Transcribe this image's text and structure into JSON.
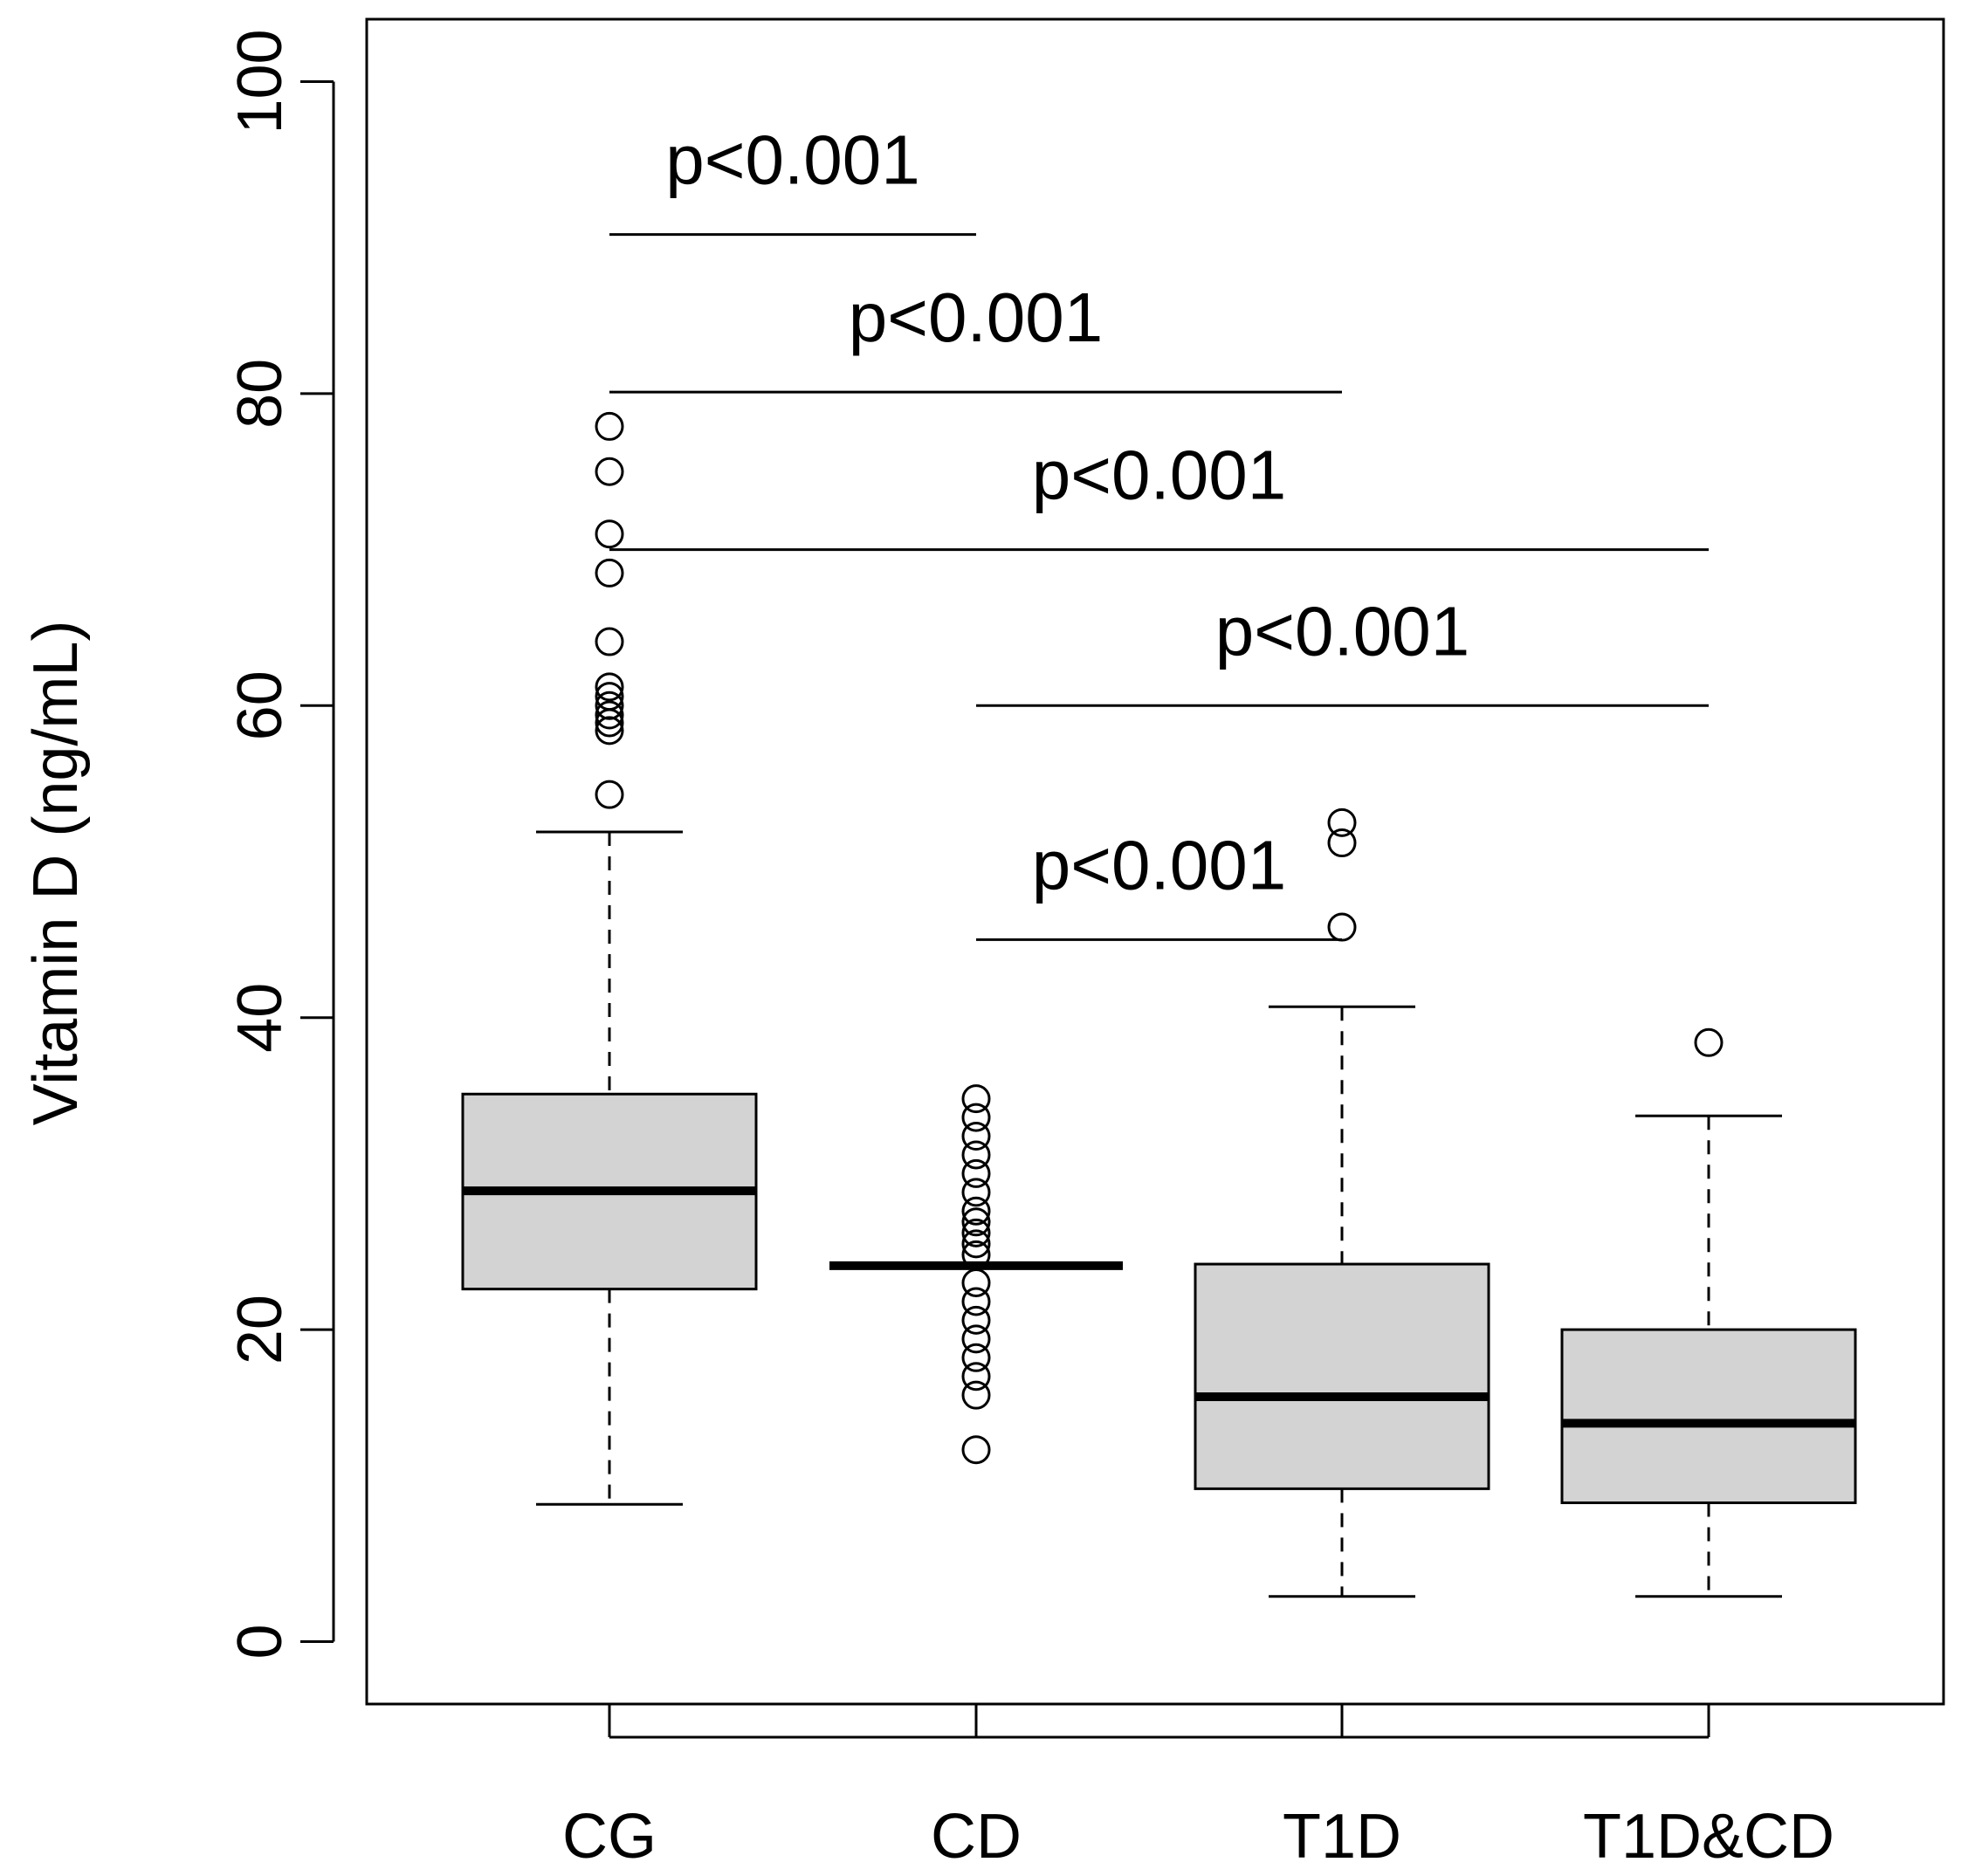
{
  "chart_data": {
    "type": "boxplot",
    "title": "",
    "xlabel": "",
    "ylabel": "Vitamin D (ng/mL)",
    "ylim": [
      -4,
      104
    ],
    "yticks": [
      "0",
      "20",
      "40",
      "60",
      "80",
      "100"
    ],
    "categories": [
      "CG",
      "CD",
      "T1D",
      "T1D&CD"
    ],
    "box_fill": "#d3d3d3",
    "boxes": [
      {
        "name": "CG",
        "whisker_low": 8.8,
        "q1": 22.6,
        "median": 28.9,
        "q3": 35.1,
        "whisker_high": 51.9,
        "outliers": [
          54.3,
          58.4,
          58.9,
          59.4,
          60.0,
          60.6,
          61.2,
          64.1,
          68.5,
          71.0,
          75.0,
          77.9
        ]
      },
      {
        "name": "CD",
        "whisker_low": 24.1,
        "q1": 24.1,
        "median": 24.1,
        "q3": 24.1,
        "whisker_high": 24.1,
        "outliers": [
          12.3,
          15.8,
          17.0,
          18.2,
          19.4,
          20.6,
          21.8,
          23.0,
          24.8,
          25.5,
          26.2,
          26.9,
          27.6,
          28.8,
          30.0,
          31.2,
          32.4,
          33.6,
          34.8
        ]
      },
      {
        "name": "T1D",
        "whisker_low": 2.9,
        "q1": 9.8,
        "median": 15.7,
        "q3": 24.2,
        "whisker_high": 40.7,
        "outliers": [
          45.8,
          51.2,
          52.5
        ]
      },
      {
        "name": "T1D&CD",
        "whisker_low": 2.9,
        "q1": 8.9,
        "median": 14.0,
        "q3": 20.0,
        "whisker_high": 33.7,
        "outliers": [
          38.4
        ]
      }
    ],
    "annotations": [
      {
        "label": "p<0.001",
        "from": 0,
        "to": 1,
        "y": 90.2
      },
      {
        "label": "p<0.001",
        "from": 0,
        "to": 2,
        "y": 80.1
      },
      {
        "label": "p<0.001",
        "from": 0,
        "to": 3,
        "y": 70.0
      },
      {
        "label": "p<0.001",
        "from": 1,
        "to": 3,
        "y": 60.0
      },
      {
        "label": "p<0.001",
        "from": 1,
        "to": 2,
        "y": 45.0
      }
    ]
  }
}
